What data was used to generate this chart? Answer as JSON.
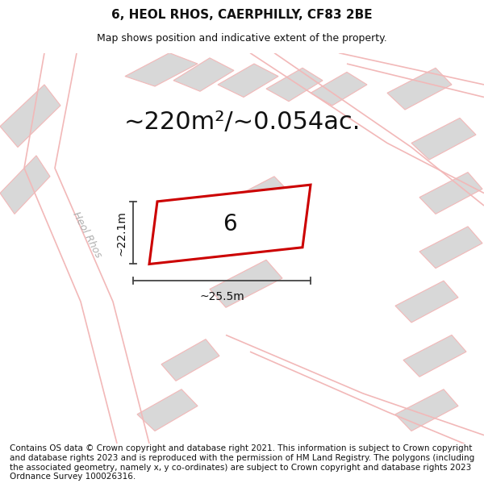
{
  "title_line1": "6, HEOL RHOS, CAERPHILLY, CF83 2BE",
  "title_line2": "Map shows position and indicative extent of the property.",
  "area_text": "~220m²/~0.054ac.",
  "dim_width": "~25.5m",
  "dim_height": "~22.1m",
  "plot_label": "6",
  "footer_text": "Contains OS data © Crown copyright and database right 2021. This information is subject to Crown copyright and database rights 2023 and is reproduced with the permission of HM Land Registry. The polygons (including the associated geometry, namely x, y co-ordinates) are subject to Crown copyright and database rights 2023 Ordnance Survey 100026316.",
  "map_bg": "#ebebeb",
  "road_color": "#f2b8b8",
  "plot_outline_color": "#cc0000",
  "plot_fill": "#ffffff",
  "building_fill": "#d8d8d8",
  "building_outline": "#f2b8b8",
  "dim_line_color": "#444444",
  "text_color": "#111111",
  "road_label_color": "#b0b0b0",
  "title_fontsize": 11,
  "subtitle_fontsize": 9,
  "area_fontsize": 22,
  "dim_fontsize": 10,
  "plot_label_fontsize": 20,
  "footer_fontsize": 7.5,
  "road_lw": 1.2,
  "building_lw": 0.8,
  "plot_lw": 2.2
}
